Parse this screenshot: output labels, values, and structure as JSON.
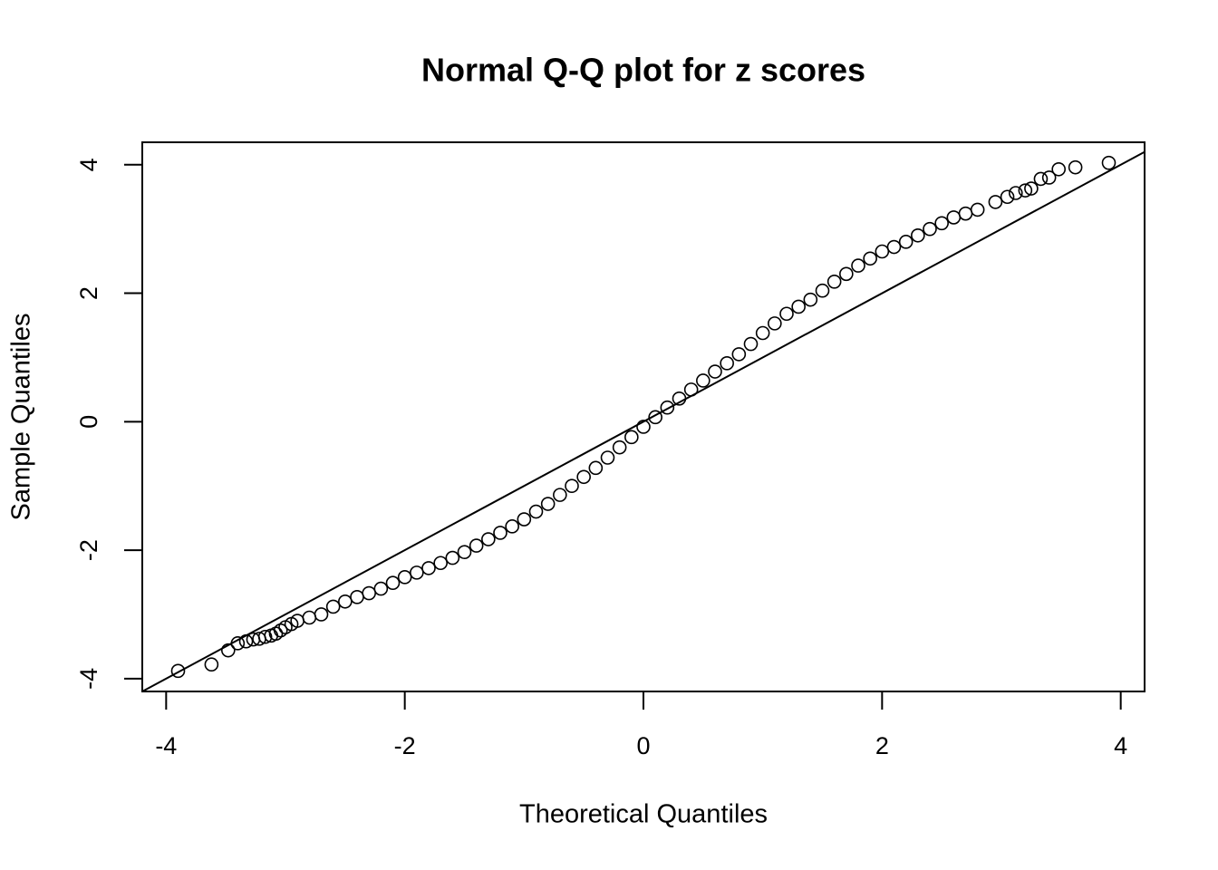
{
  "chart_data": {
    "type": "scatter",
    "title": "Normal Q-Q plot for z scores",
    "x_label": "Theoretical Quantiles",
    "y_label": "Sample Quantiles",
    "xlim": [
      -4.2,
      4.2
    ],
    "ylim": [
      -4.2,
      4.35
    ],
    "xticks": [
      -4,
      -2,
      0,
      2,
      4
    ],
    "yticks": [
      -4,
      -2,
      0,
      2,
      4
    ],
    "color": "#000000",
    "reference_line": {
      "slope": 1,
      "intercept": 0
    },
    "x": [
      -3.9,
      -3.62,
      -3.48,
      -3.4,
      -3.33,
      -3.27,
      -3.22,
      -3.17,
      -3.12,
      -3.08,
      -3.04,
      -3.0,
      -2.95,
      -2.9,
      -2.8,
      -2.7,
      -2.6,
      -2.5,
      -2.4,
      -2.3,
      -2.2,
      -2.1,
      -2.0,
      -1.9,
      -1.8,
      -1.7,
      -1.6,
      -1.5,
      -1.4,
      -1.3,
      -1.2,
      -1.1,
      -1.0,
      -0.9,
      -0.8,
      -0.7,
      -0.6,
      -0.5,
      -0.4,
      -0.3,
      -0.2,
      -0.1,
      0,
      0.1,
      0.2,
      0.3,
      0.4,
      0.5,
      0.6,
      0.7,
      0.8,
      0.9,
      1.0,
      1.1,
      1.2,
      1.3,
      1.4,
      1.5,
      1.6,
      1.7,
      1.8,
      1.9,
      2.0,
      2.1,
      2.2,
      2.3,
      2.4,
      2.5,
      2.6,
      2.7,
      2.8,
      2.95,
      3.05,
      3.12,
      3.2,
      3.25,
      3.33,
      3.4,
      3.48,
      3.62,
      3.9
    ],
    "y": [
      -3.88,
      -3.78,
      -3.56,
      -3.45,
      -3.42,
      -3.39,
      -3.38,
      -3.35,
      -3.33,
      -3.3,
      -3.25,
      -3.2,
      -3.15,
      -3.1,
      -3.05,
      -3.0,
      -2.88,
      -2.8,
      -2.73,
      -2.67,
      -2.6,
      -2.51,
      -2.42,
      -2.35,
      -2.28,
      -2.2,
      -2.12,
      -2.03,
      -1.93,
      -1.83,
      -1.73,
      -1.63,
      -1.52,
      -1.4,
      -1.28,
      -1.14,
      -1.0,
      -0.86,
      -0.72,
      -0.56,
      -0.4,
      -0.24,
      -0.08,
      0.07,
      0.22,
      0.36,
      0.5,
      0.64,
      0.78,
      0.91,
      1.05,
      1.21,
      1.38,
      1.53,
      1.68,
      1.79,
      1.9,
      2.04,
      2.18,
      2.3,
      2.43,
      2.54,
      2.65,
      2.72,
      2.8,
      2.9,
      3.0,
      3.09,
      3.18,
      3.24,
      3.3,
      3.42,
      3.5,
      3.56,
      3.6,
      3.63,
      3.78,
      3.8,
      3.93,
      3.96,
      4.03
    ]
  }
}
